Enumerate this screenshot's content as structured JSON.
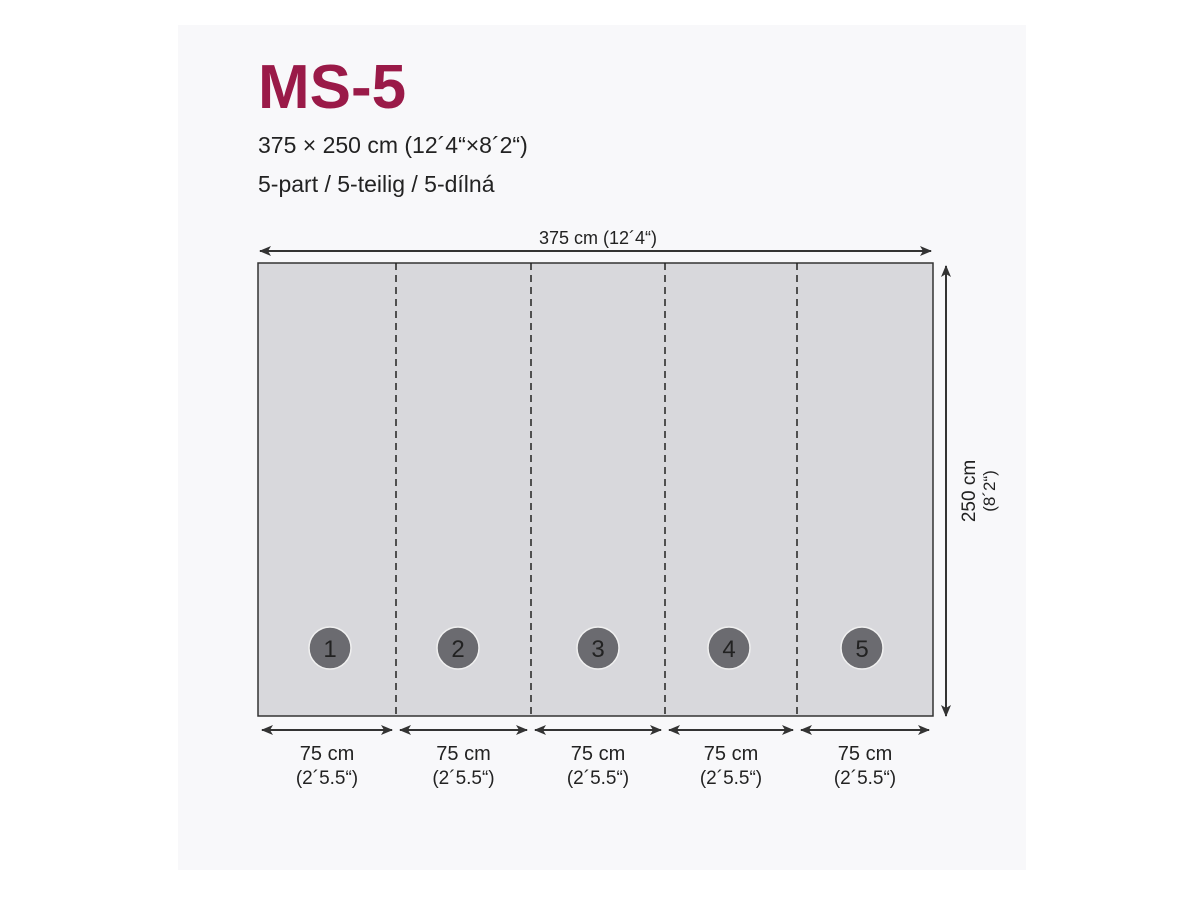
{
  "title": "MS-5",
  "size_line": "375 × 250 cm  (12´4“×8´2“)",
  "parts_line": "5-part / 5-teilig / 5-dílná",
  "width_label": "375 cm  (12´4“)",
  "height_label": "250 cm",
  "height_label_imperial": "(8´2“)",
  "panels": [
    {
      "number": "1",
      "width": "75 cm",
      "width_imperial": "(2´5.5“)"
    },
    {
      "number": "2",
      "width": "75 cm",
      "width_imperial": "(2´5.5“)"
    },
    {
      "number": "3",
      "width": "75 cm",
      "width_imperial": "(2´5.5“)"
    },
    {
      "number": "4",
      "width": "75 cm",
      "width_imperial": "(2´5.5“)"
    },
    {
      "number": "5",
      "width": "75 cm",
      "width_imperial": "(2´5.5“)"
    }
  ],
  "colors": {
    "title": "#9a1a48",
    "panel": "#d8d8dc",
    "badge": "#6b6b70"
  }
}
